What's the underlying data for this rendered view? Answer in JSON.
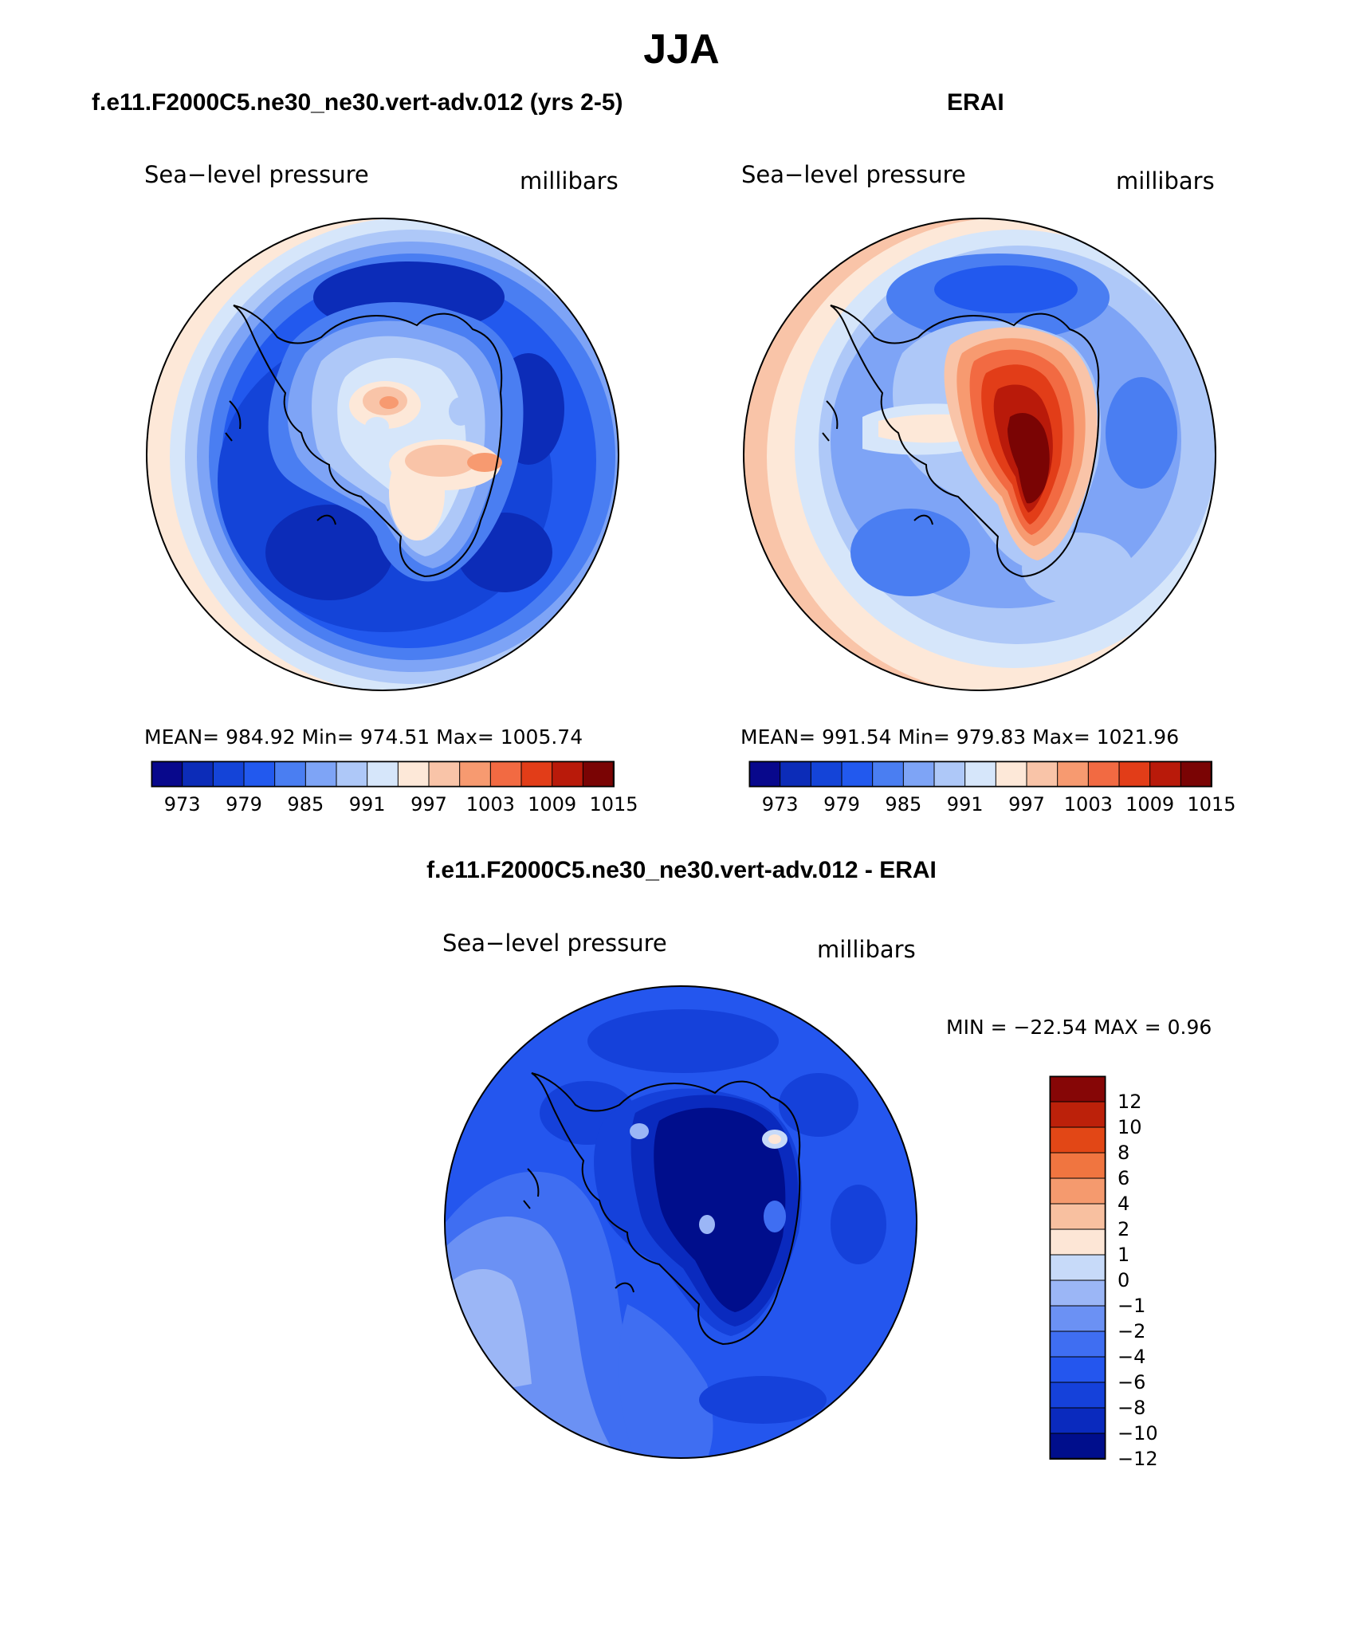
{
  "figure_title": "JJA",
  "colors": {
    "levels": [
      "#08088c",
      "#0c2cb8",
      "#1444d8",
      "#2259ee",
      "#4a7ef2",
      "#7ea4f6",
      "#aec8f8",
      "#d6e6fa",
      "#fde8d8",
      "#f9c4a8",
      "#f79a70",
      "#f26a42",
      "#e23d18",
      "#b91a0a",
      "#7a0404"
    ],
    "diff_levels": [
      "#000e8c",
      "#0a2abe",
      "#1541da",
      "#2456ee",
      "#3f6ef2",
      "#6b91f4",
      "#9bb6f6",
      "#c7daf9",
      "#fde6d6",
      "#f8c0a0",
      "#f59a6e",
      "#f07540",
      "#e24716",
      "#bc210a",
      "#860606"
    ]
  },
  "panels": [
    {
      "title": "f.e11.F2000C5.ne30_ne30.vert-adv.012 (yrs 2-5)",
      "left_label": "Sea−level pressure",
      "right_label": "millibars",
      "stats": "MEAN= 984.92   Min= 974.51   Max= 1005.74",
      "map_icon": "antarctica-polar-map-icon"
    },
    {
      "title": "ERAI",
      "left_label": "Sea−level pressure",
      "right_label": "millibars",
      "stats": "MEAN= 991.54   Min= 979.83   Max= 1021.96",
      "map_icon": "antarctica-polar-map-icon"
    },
    {
      "title": "f.e11.F2000C5.ne30_ne30.vert-adv.012 - ERAI",
      "left_label": "Sea−level pressure",
      "right_label": "millibars",
      "stats": "MIN = −22.54  MAX =    0.96",
      "map_icon": "antarctica-polar-map-icon"
    }
  ],
  "colorbar_ticks": [
    "973",
    "979",
    "985",
    "991",
    "997",
    "1003",
    "1009",
    "1015"
  ],
  "diff_colorbar_ticks": [
    "12",
    "10",
    "8",
    "6",
    "4",
    "2",
    "1",
    "0",
    "−1",
    "−2",
    "−4",
    "−6",
    "−8",
    "−10",
    "−12"
  ],
  "chart_data": {
    "type": "heatmap",
    "projection": "south-polar-stereographic",
    "variable": "Sea-level pressure",
    "units": "millibars",
    "season": "JJA",
    "fields": [
      {
        "name": "f.e11.F2000C5.ne30_ne30.vert-adv.012 (yrs 2-5)",
        "mean": 984.92,
        "min": 974.51,
        "max": 1005.74,
        "levels": [
          973,
          976,
          979,
          982,
          985,
          988,
          991,
          994,
          997,
          1000,
          1003,
          1006,
          1009,
          1012,
          1015
        ]
      },
      {
        "name": "ERAI",
        "mean": 991.54,
        "min": 979.83,
        "max": 1021.96,
        "levels": [
          973,
          976,
          979,
          982,
          985,
          988,
          991,
          994,
          997,
          1000,
          1003,
          1006,
          1009,
          1012,
          1015
        ]
      },
      {
        "name": "f.e11.F2000C5.ne30_ne30.vert-adv.012 - ERAI",
        "min": -22.54,
        "max": 0.96,
        "levels": [
          -12,
          -10,
          -8,
          -6,
          -4,
          -2,
          -1,
          0,
          1,
          2,
          4,
          6,
          8,
          10,
          12
        ]
      }
    ]
  }
}
